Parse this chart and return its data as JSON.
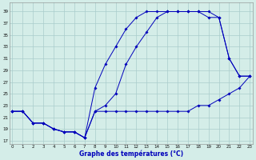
{
  "title": "Graphe des températures (°C)",
  "bg_color": "#d4ede8",
  "line_color": "#0000bb",
  "grid_color": "#aacccc",
  "xlim": [
    -0.3,
    23.3
  ],
  "ylim": [
    16.5,
    40.5
  ],
  "yticks": [
    17,
    19,
    21,
    23,
    25,
    27,
    29,
    31,
    33,
    35,
    37,
    39
  ],
  "xticks": [
    0,
    1,
    2,
    3,
    4,
    5,
    6,
    7,
    8,
    9,
    10,
    11,
    12,
    13,
    14,
    15,
    16,
    17,
    18,
    19,
    20,
    21,
    22,
    23
  ],
  "line_min_x": [
    0,
    1,
    2,
    3,
    4,
    5,
    6,
    7,
    8,
    9,
    10,
    11,
    12,
    13,
    14,
    15,
    16,
    17,
    18,
    19,
    20,
    21,
    22,
    23
  ],
  "line_min_y": [
    22,
    22,
    20,
    20,
    19,
    18.5,
    18.5,
    17.5,
    22,
    22,
    22,
    22,
    22,
    22,
    22,
    22,
    22,
    22,
    23,
    23,
    24,
    25,
    26,
    28
  ],
  "line_max_x": [
    0,
    1,
    2,
    3,
    4,
    5,
    6,
    7,
    8,
    9,
    10,
    11,
    12,
    13,
    14,
    15,
    16,
    17,
    18,
    19,
    20,
    21,
    22,
    23
  ],
  "line_max_y": [
    22,
    22,
    20,
    20,
    19,
    18.5,
    18.5,
    17.5,
    26,
    30,
    33,
    36,
    38,
    39,
    39,
    39,
    39,
    39,
    39,
    38,
    38,
    31,
    28,
    28
  ],
  "line_mid_x": [
    0,
    1,
    2,
    3,
    4,
    5,
    6,
    7,
    8,
    9,
    10,
    11,
    12,
    13,
    14,
    15,
    16,
    17,
    18,
    19,
    20,
    21,
    22,
    23
  ],
  "line_mid_y": [
    22,
    22,
    20,
    20,
    19,
    18.5,
    18.5,
    17.5,
    22,
    23,
    25,
    30,
    33,
    35.5,
    38,
    39,
    39,
    39,
    39,
    39,
    38,
    31,
    28,
    28
  ]
}
